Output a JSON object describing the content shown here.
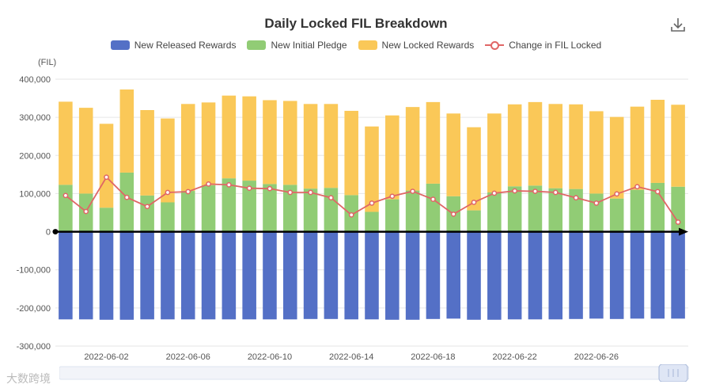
{
  "title": "Daily Locked FIL Breakdown",
  "toolbar": {
    "download_icon": "download-icon"
  },
  "watermark": "大数跨境",
  "colors": {
    "released": "#5470c6",
    "pledge": "#91cc75",
    "locked": "#fac858",
    "change": "#e06666",
    "axis": "#000000",
    "grid": "#e6e6e6"
  },
  "chart_data": {
    "type": "bar",
    "stacked": true,
    "title": "Daily Locked FIL Breakdown",
    "unit_label": "(FIL)",
    "ylim": [
      -300000,
      400000
    ],
    "y_ticks": [
      400000,
      300000,
      200000,
      100000,
      0,
      -100000,
      -200000,
      -300000
    ],
    "y_tick_labels": [
      "400,000",
      "300,000",
      "200,000",
      "100,000",
      "0",
      "-100,000",
      "-200,000",
      "-300,000"
    ],
    "x": [
      "2022-05-31",
      "2022-06-01",
      "2022-06-02",
      "2022-06-03",
      "2022-06-04",
      "2022-06-05",
      "2022-06-06",
      "2022-06-07",
      "2022-06-08",
      "2022-06-09",
      "2022-06-10",
      "2022-06-11",
      "2022-06-12",
      "2022-06-13",
      "2022-06-14",
      "2022-06-15",
      "2022-06-16",
      "2022-06-17",
      "2022-06-18",
      "2022-06-19",
      "2022-06-20",
      "2022-06-21",
      "2022-06-22",
      "2022-06-23",
      "2022-06-24",
      "2022-06-25",
      "2022-06-26",
      "2022-06-27",
      "2022-06-28",
      "2022-06-29",
      "2022-06-30"
    ],
    "x_tick_labels": [
      "2022-06-02",
      "2022-06-06",
      "2022-06-10",
      "2022-06-14",
      "2022-06-18",
      "2022-06-22",
      "2022-06-26"
    ],
    "legend": [
      "New Released Rewards",
      "New Initial Pledge",
      "New Locked Rewards",
      "Change in FIL Locked"
    ],
    "series": [
      {
        "name": "New Released Rewards",
        "type": "bar",
        "values": [
          -230000,
          -230000,
          -231000,
          -231000,
          -230000,
          -230000,
          -230000,
          -230000,
          -230000,
          -230000,
          -230000,
          -230000,
          -229000,
          -229000,
          -230000,
          -230000,
          -231000,
          -231000,
          -229000,
          -228000,
          -231000,
          -231000,
          -230000,
          -230000,
          -230000,
          -229000,
          -228000,
          -229000,
          -228000,
          -228000,
          -228000
        ]
      },
      {
        "name": "New Initial Pledge",
        "type": "bar",
        "values": [
          123000,
          100000,
          63000,
          155000,
          95000,
          77000,
          107000,
          122000,
          140000,
          134000,
          125000,
          123000,
          113000,
          115000,
          96000,
          52000,
          85000,
          108000,
          126000,
          93000,
          56000,
          103000,
          119000,
          121000,
          114000,
          112000,
          100000,
          87000,
          110000,
          128000,
          118000
        ]
      },
      {
        "name": "New Locked Rewards",
        "type": "bar",
        "values": [
          218000,
          225000,
          220000,
          218000,
          224000,
          220000,
          228000,
          217000,
          217000,
          221000,
          220000,
          220000,
          222000,
          220000,
          221000,
          224000,
          220000,
          219000,
          214000,
          217000,
          218000,
          207000,
          215000,
          219000,
          221000,
          222000,
          216000,
          214000,
          218000,
          218000,
          215000
        ]
      },
      {
        "name": "Change in FIL Locked",
        "type": "line",
        "values": [
          95000,
          53000,
          143000,
          90000,
          66000,
          103000,
          105000,
          125000,
          123000,
          114000,
          113000,
          103000,
          103000,
          89000,
          44000,
          75000,
          93000,
          106000,
          85000,
          46000,
          77000,
          101000,
          107000,
          106000,
          103000,
          89000,
          75000,
          99000,
          118000,
          105000,
          25000
        ]
      }
    ]
  }
}
